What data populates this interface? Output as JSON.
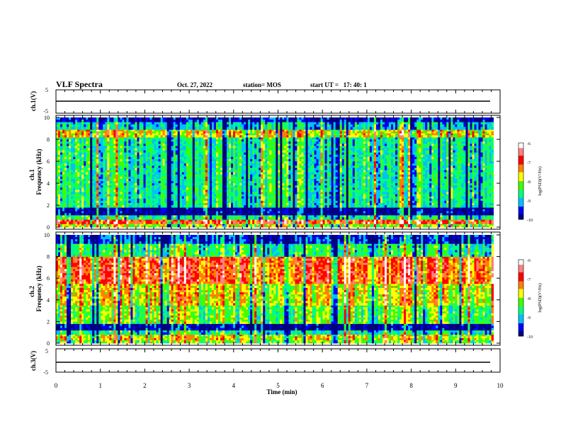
{
  "header": {
    "title": "VLF Spectra",
    "date": "Oct. 27, 2022",
    "station": "station= MOS",
    "start_ut": "start UT =   17: 40: 1"
  },
  "chart_data": [
    {
      "type": "line",
      "panel": "ch1-waveform",
      "ylabel": "ch.1(V)",
      "ylim": [
        -5,
        5
      ],
      "y_ticks": [
        "5",
        "-5"
      ],
      "xlim": [
        0,
        10
      ],
      "series": [
        {
          "x": [
            0,
            9.85
          ],
          "y": [
            0,
            0
          ]
        }
      ]
    },
    {
      "type": "heatmap",
      "panel": "ch1-spectrogram",
      "ylabel_top": "ch.1",
      "ylabel": "Frequency (kHz)",
      "ylim": [
        0,
        10
      ],
      "y_ticks": [
        "0",
        "2",
        "4",
        "6",
        "8",
        "10"
      ],
      "xlim": [
        0,
        9.85
      ],
      "colorbar": {
        "label": "log(PSD)(V²/Hz)",
        "range": [
          -10,
          -6
        ],
        "ticks": [
          "-6",
          "-7",
          "-8",
          "-9",
          "-10"
        ],
        "colors": [
          "#000080",
          "#0000ff",
          "#00c0ff",
          "#00ff80",
          "#40ff00",
          "#ffff00",
          "#ff8000",
          "#ff0000",
          "#ff8080",
          "#ffffff"
        ]
      },
      "bands": [
        {
          "f": [
            0,
            0.3
          ],
          "level": -8.0
        },
        {
          "f": [
            0.3,
            0.7
          ],
          "level": -6.9
        },
        {
          "f": [
            0.7,
            1.1
          ],
          "level": -8.6
        },
        {
          "f": [
            1.1,
            1.8
          ],
          "level": -10.0
        },
        {
          "f": [
            1.8,
            8.2
          ],
          "level": -8.7
        },
        {
          "f": [
            8.2,
            8.9
          ],
          "level": -7.7
        },
        {
          "f": [
            8.9,
            9.6
          ],
          "level": -9.0
        },
        {
          "f": [
            9.6,
            10
          ],
          "level": -9.8
        }
      ]
    },
    {
      "type": "heatmap",
      "panel": "ch2-spectrogram",
      "ylabel_top": "ch.2",
      "ylabel": "Frequency (kHz)",
      "ylim": [
        0,
        10
      ],
      "y_ticks": [
        "0",
        "2",
        "4",
        "6",
        "8",
        "10"
      ],
      "xlim": [
        0,
        9.85
      ],
      "colorbar": {
        "label": "log(PSD)(V²/Hz)",
        "range": [
          -10,
          -6
        ],
        "ticks": [
          "-6",
          "-7",
          "-8",
          "-9",
          "-10"
        ],
        "colors": [
          "#000080",
          "#0000ff",
          "#00c0ff",
          "#00ff80",
          "#40ff00",
          "#ffff00",
          "#ff8000",
          "#ff0000",
          "#ff8080",
          "#ffffff"
        ]
      },
      "bands": [
        {
          "f": [
            0,
            0.3
          ],
          "level": -8.2
        },
        {
          "f": [
            0.3,
            0.8
          ],
          "level": -7.8
        },
        {
          "f": [
            0.8,
            1.2
          ],
          "level": -8.8
        },
        {
          "f": [
            1.2,
            1.8
          ],
          "level": -10.0
        },
        {
          "f": [
            1.8,
            3.5
          ],
          "level": -8.3
        },
        {
          "f": [
            3.5,
            5.5
          ],
          "level": -7.8
        },
        {
          "f": [
            5.5,
            8.0
          ],
          "level": -7.1
        },
        {
          "f": [
            8.0,
            9.2
          ],
          "level": -8.6
        },
        {
          "f": [
            9.2,
            10
          ],
          "level": -9.6
        }
      ]
    },
    {
      "type": "line",
      "panel": "ch3-waveform",
      "ylabel": "ch.3(V)",
      "ylim": [
        -5,
        5
      ],
      "y_ticks": [
        "5",
        "0",
        "-5"
      ],
      "xlim": [
        0,
        10
      ],
      "xlabel": "Time (min)",
      "x_ticks": [
        "0",
        "1",
        "2",
        "3",
        "4",
        "5",
        "6",
        "7",
        "8",
        "9",
        "10"
      ],
      "series": [
        {
          "x": [
            0,
            9.85
          ],
          "y": [
            0,
            0
          ]
        }
      ]
    }
  ]
}
